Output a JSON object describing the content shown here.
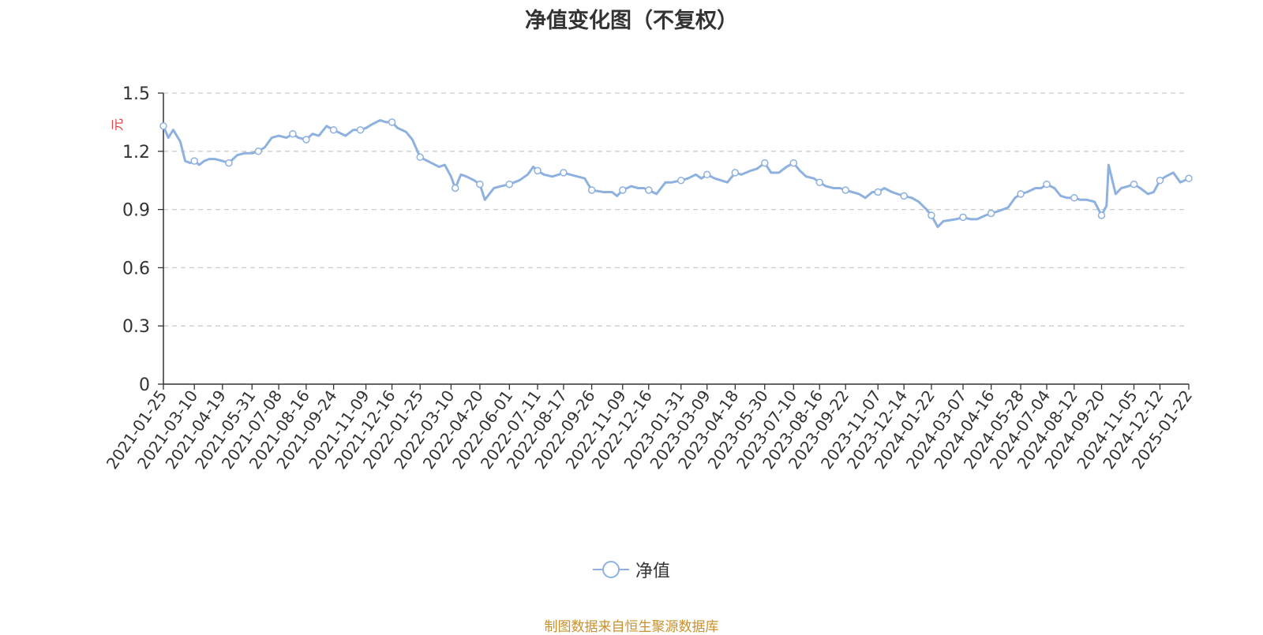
{
  "colors": {
    "series": "#8eb1df",
    "axis": "#333333",
    "grid": "#cccccc",
    "ylabel": "#e03a3a",
    "source": "#c9912d",
    "title": "#333333"
  },
  "chart_data": {
    "type": "line",
    "title": "净值变化图（不复权）",
    "ylabel": "元",
    "xlabel": "",
    "ylim": [
      0,
      1.5
    ],
    "yticks": [
      0,
      0.3,
      0.6,
      0.9,
      1.2,
      1.5
    ],
    "ytick_labels": [
      "0",
      "0.3",
      "0.6",
      "0.9",
      "1.2",
      "1.5"
    ],
    "grid": true,
    "grid_style": "dashed",
    "legend_position": "bottom-center",
    "x_tick_labels": [
      "2021-01-25",
      "2021-03-10",
      "2021-04-19",
      "2021-05-31",
      "2021-07-08",
      "2021-08-16",
      "2021-09-24",
      "2021-11-09",
      "2021-12-16",
      "2022-01-25",
      "2022-03-10",
      "2022-04-20",
      "2022-06-01",
      "2022-07-11",
      "2022-08-17",
      "2022-09-26",
      "2022-11-09",
      "2022-12-16",
      "2023-01-31",
      "2023-03-09",
      "2023-04-18",
      "2023-05-30",
      "2023-07-10",
      "2023-08-16",
      "2023-09-22",
      "2023-11-07",
      "2023-12-14",
      "2024-01-22",
      "2024-03-07",
      "2024-04-16",
      "2024-05-28",
      "2024-07-04",
      "2024-08-12",
      "2024-09-20",
      "2024-11-05",
      "2024-12-12",
      "2025-01-22"
    ],
    "series": [
      {
        "name": "净值",
        "x": [
          "2021-01-25",
          "2021-02-01",
          "2021-02-08",
          "2021-02-18",
          "2021-02-25",
          "2021-03-04",
          "2021-03-10",
          "2021-03-17",
          "2021-03-24",
          "2021-03-31",
          "2021-04-08",
          "2021-04-19",
          "2021-04-28",
          "2021-05-10",
          "2021-05-20",
          "2021-05-31",
          "2021-06-09",
          "2021-06-18",
          "2021-06-28",
          "2021-07-08",
          "2021-07-19",
          "2021-07-28",
          "2021-08-05",
          "2021-08-16",
          "2021-08-25",
          "2021-09-03",
          "2021-09-14",
          "2021-09-24",
          "2021-10-11",
          "2021-10-22",
          "2021-11-01",
          "2021-11-09",
          "2021-11-18",
          "2021-11-29",
          "2021-12-08",
          "2021-12-16",
          "2021-12-24",
          "2022-01-05",
          "2022-01-14",
          "2022-01-25",
          "2022-02-10",
          "2022-02-21",
          "2022-03-01",
          "2022-03-10",
          "2022-03-16",
          "2022-03-24",
          "2022-04-01",
          "2022-04-12",
          "2022-04-20",
          "2022-04-27",
          "2022-05-10",
          "2022-05-20",
          "2022-06-01",
          "2022-06-15",
          "2022-06-27",
          "2022-07-05",
          "2022-07-11",
          "2022-07-20",
          "2022-08-01",
          "2022-08-10",
          "2022-08-17",
          "2022-08-26",
          "2022-09-06",
          "2022-09-16",
          "2022-09-26",
          "2022-10-13",
          "2022-10-25",
          "2022-11-01",
          "2022-11-09",
          "2022-11-21",
          "2022-12-01",
          "2022-12-09",
          "2022-12-16",
          "2022-12-27",
          "2023-01-09",
          "2023-01-18",
          "2023-01-31",
          "2023-02-10",
          "2023-02-21",
          "2023-03-01",
          "2023-03-09",
          "2023-03-20",
          "2023-03-29",
          "2023-04-07",
          "2023-04-18",
          "2023-04-27",
          "2023-05-10",
          "2023-05-19",
          "2023-05-30",
          "2023-06-08",
          "2023-06-19",
          "2023-06-30",
          "2023-07-10",
          "2023-07-19",
          "2023-07-28",
          "2023-08-08",
          "2023-08-16",
          "2023-08-25",
          "2023-09-05",
          "2023-09-14",
          "2023-09-22",
          "2023-10-11",
          "2023-10-20",
          "2023-10-30",
          "2023-11-07",
          "2023-11-16",
          "2023-11-27",
          "2023-12-05",
          "2023-12-14",
          "2023-12-25",
          "2024-01-04",
          "2024-01-15",
          "2024-01-22",
          "2024-01-31",
          "2024-02-08",
          "2024-02-26",
          "2024-03-07",
          "2024-03-18",
          "2024-03-27",
          "2024-04-08",
          "2024-04-16",
          "2024-04-25",
          "2024-05-10",
          "2024-05-20",
          "2024-05-28",
          "2024-06-06",
          "2024-06-18",
          "2024-06-26",
          "2024-07-04",
          "2024-07-15",
          "2024-07-24",
          "2024-08-02",
          "2024-08-12",
          "2024-08-21",
          "2024-08-30",
          "2024-09-10",
          "2024-09-20",
          "2024-09-27",
          "2024-09-30",
          "2024-10-10",
          "2024-10-18",
          "2024-10-28",
          "2024-11-05",
          "2024-11-14",
          "2024-11-25",
          "2024-12-03",
          "2024-12-12",
          "2024-12-20",
          "2024-12-31",
          "2025-01-10",
          "2025-01-22"
        ],
        "values": [
          1.33,
          1.27,
          1.31,
          1.25,
          1.15,
          1.14,
          1.15,
          1.13,
          1.15,
          1.16,
          1.16,
          1.15,
          1.14,
          1.18,
          1.19,
          1.19,
          1.2,
          1.22,
          1.27,
          1.28,
          1.27,
          1.29,
          1.27,
          1.26,
          1.29,
          1.28,
          1.33,
          1.31,
          1.28,
          1.31,
          1.31,
          1.32,
          1.34,
          1.36,
          1.35,
          1.35,
          1.32,
          1.3,
          1.26,
          1.17,
          1.14,
          1.12,
          1.13,
          1.07,
          1.01,
          1.08,
          1.07,
          1.05,
          1.03,
          0.95,
          1.01,
          1.02,
          1.03,
          1.05,
          1.08,
          1.12,
          1.1,
          1.08,
          1.07,
          1.08,
          1.09,
          1.08,
          1.07,
          1.06,
          1.0,
          0.99,
          0.99,
          0.97,
          1.0,
          1.02,
          1.01,
          1.01,
          1.0,
          0.98,
          1.04,
          1.04,
          1.05,
          1.06,
          1.08,
          1.06,
          1.08,
          1.06,
          1.05,
          1.04,
          1.09,
          1.08,
          1.1,
          1.11,
          1.14,
          1.09,
          1.09,
          1.12,
          1.14,
          1.1,
          1.07,
          1.06,
          1.04,
          1.02,
          1.01,
          1.01,
          1.0,
          0.98,
          0.96,
          0.99,
          0.99,
          1.01,
          0.99,
          0.98,
          0.97,
          0.96,
          0.94,
          0.9,
          0.87,
          0.81,
          0.84,
          0.85,
          0.86,
          0.85,
          0.85,
          0.87,
          0.88,
          0.89,
          0.91,
          0.96,
          0.98,
          0.99,
          1.01,
          1.01,
          1.03,
          1.01,
          0.97,
          0.96,
          0.96,
          0.95,
          0.95,
          0.94,
          0.87,
          0.92,
          1.13,
          0.98,
          1.01,
          1.02,
          1.03,
          1.01,
          0.98,
          0.99,
          1.05,
          1.07,
          1.09,
          1.04,
          1.06
        ]
      }
    ],
    "markers": [
      "2021-01-25",
      "2021-03-10",
      "2021-04-28",
      "2021-06-09",
      "2021-07-28",
      "2021-08-16",
      "2021-09-24",
      "2021-11-01",
      "2021-12-16",
      "2022-01-25",
      "2022-03-16",
      "2022-04-20",
      "2022-06-01",
      "2022-07-11",
      "2022-08-17",
      "2022-09-26",
      "2022-11-09",
      "2022-12-16",
      "2023-01-31",
      "2023-03-09",
      "2023-04-18",
      "2023-05-30",
      "2023-07-10",
      "2023-08-16",
      "2023-09-22",
      "2023-11-07",
      "2023-12-14",
      "2024-01-22",
      "2024-03-07",
      "2024-04-16",
      "2024-05-28",
      "2024-07-04",
      "2024-08-12",
      "2024-09-20",
      "2024-11-05",
      "2024-12-12",
      "2025-01-22"
    ]
  },
  "legend": {
    "label": "净值"
  },
  "source": "制图数据来自恒生聚源数据库"
}
